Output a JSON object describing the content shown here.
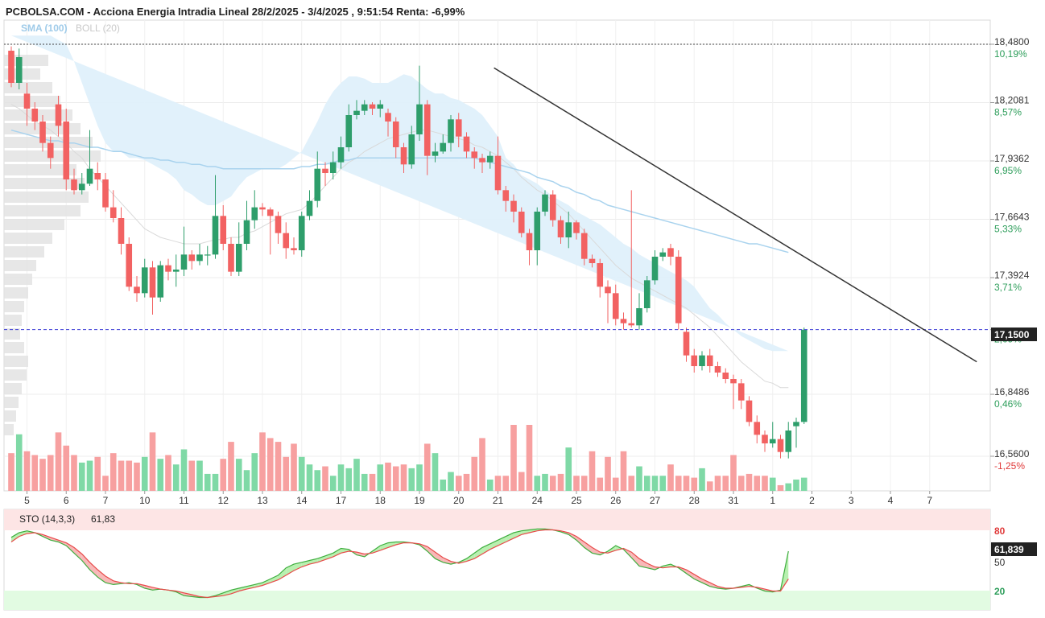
{
  "header": {
    "title": "PCBOLSA.COM - Acciona Energia Intradia Lineal 28/2/2025 - 3/4/2025 , 9:51:54 Renta: -6,99%"
  },
  "legend": {
    "sma": "SMA (100)",
    "boll": "BOLL (20)"
  },
  "colors": {
    "up": "#2e9e6b",
    "down": "#f26262",
    "up_volume": "#7fd9a6",
    "down_volume": "#f7a0a0",
    "band_fill": "#dff0fb",
    "sma": "#a9d3ee",
    "last_price_line": "#3b3bd6",
    "badge_bg": "#222222",
    "trendline": "#333333"
  },
  "price_axis": {
    "ticks": [
      {
        "value": "18,4800",
        "pct": "10,19%",
        "pct_sign": "pos"
      },
      {
        "value": "18,2081",
        "pct": "8,57%",
        "pct_sign": "pos"
      },
      {
        "value": "17,9362",
        "pct": "6,95%",
        "pct_sign": "pos"
      },
      {
        "value": "17,6643",
        "pct": "5,33%",
        "pct_sign": "pos"
      },
      {
        "value": "17,3924",
        "pct": "3,71%",
        "pct_sign": "pos"
      },
      {
        "value": "17,1500",
        "pct": "2,09%",
        "pct_sign": "pos",
        "highlight": true
      },
      {
        "value": "16,8486",
        "pct": "0,46%",
        "pct_sign": "pos"
      },
      {
        "value": "16,5600",
        "pct": "-1,25%",
        "pct_sign": "neg"
      }
    ],
    "last_price_label": "17,1500"
  },
  "x_axis": {
    "labels": [
      "5",
      "6",
      "7",
      "10",
      "11",
      "12",
      "13",
      "14",
      "17",
      "18",
      "19",
      "20",
      "21",
      "24",
      "25",
      "26",
      "27",
      "28",
      "31",
      "1",
      "2",
      "3",
      "4",
      "7"
    ]
  },
  "stochastic": {
    "label": "STO (14,3,3)",
    "value_label": "61,83",
    "badge": "61,839",
    "levels": [
      "80",
      "50",
      "20"
    ]
  },
  "chart_data": {
    "type": "candlestick",
    "title": "PCBOLSA.COM - Acciona Energia Intradia Lineal 28/2/2025 - 3/4/2025 , 9:51:54 Renta: -6,99%",
    "last_price": 17.15,
    "ylim": [
      16.5,
      18.55
    ],
    "candles": [
      [
        18.45,
        18.3,
        18.47,
        18.28
      ],
      [
        18.3,
        18.42,
        18.46,
        18.27
      ],
      [
        18.25,
        18.18,
        18.3,
        18.1
      ],
      [
        18.18,
        18.12,
        18.21,
        18.08
      ],
      [
        18.12,
        18.02,
        18.15,
        17.98
      ],
      [
        18.02,
        17.95,
        18.05,
        17.9
      ],
      [
        18.2,
        18.1,
        18.24,
        18.05
      ],
      [
        18.12,
        17.85,
        18.18,
        17.8
      ],
      [
        17.85,
        17.8,
        17.9,
        17.78
      ],
      [
        17.8,
        17.83,
        17.88,
        17.78
      ],
      [
        17.83,
        17.9,
        18.08,
        17.82
      ],
      [
        17.88,
        17.85,
        17.93,
        17.8
      ],
      [
        17.85,
        17.72,
        17.88,
        17.7
      ],
      [
        17.72,
        17.67,
        17.8,
        17.65
      ],
      [
        17.67,
        17.55,
        17.72,
        17.5
      ],
      [
        17.55,
        17.35,
        17.58,
        17.33
      ],
      [
        17.35,
        17.32,
        17.4,
        17.28
      ],
      [
        17.32,
        17.44,
        17.48,
        17.3
      ],
      [
        17.44,
        17.3,
        17.47,
        17.22
      ],
      [
        17.3,
        17.45,
        17.47,
        17.28
      ],
      [
        17.45,
        17.42,
        17.48,
        17.38
      ],
      [
        17.42,
        17.43,
        17.5,
        17.35
      ],
      [
        17.43,
        17.5,
        17.63,
        17.4
      ],
      [
        17.5,
        17.47,
        17.52,
        17.43
      ],
      [
        17.47,
        17.5,
        17.55,
        17.45
      ],
      [
        17.5,
        17.5,
        17.54,
        17.45
      ],
      [
        17.5,
        17.68,
        17.87,
        17.48
      ],
      [
        17.68,
        17.55,
        17.73,
        17.52
      ],
      [
        17.55,
        17.42,
        17.58,
        17.4
      ],
      [
        17.42,
        17.55,
        17.65,
        17.4
      ],
      [
        17.55,
        17.66,
        17.75,
        17.52
      ],
      [
        17.66,
        17.72,
        17.8,
        17.62
      ],
      [
        17.72,
        17.71,
        17.74,
        17.68
      ],
      [
        17.71,
        17.68,
        17.72,
        17.5
      ],
      [
        17.68,
        17.6,
        17.7,
        17.55
      ],
      [
        17.6,
        17.53,
        17.65,
        17.48
      ],
      [
        17.53,
        17.52,
        17.58,
        17.5
      ],
      [
        17.52,
        17.68,
        17.7,
        17.49
      ],
      [
        17.68,
        17.75,
        17.8,
        17.66
      ],
      [
        17.75,
        17.9,
        17.98,
        17.72
      ],
      [
        17.9,
        17.88,
        17.93,
        17.82
      ],
      [
        17.88,
        17.93,
        17.98,
        17.85
      ],
      [
        17.93,
        18.0,
        18.05,
        17.9
      ],
      [
        18.0,
        18.15,
        18.2,
        17.98
      ],
      [
        18.15,
        18.17,
        18.22,
        18.13
      ],
      [
        18.17,
        18.2,
        18.22,
        18.15
      ],
      [
        18.2,
        18.18,
        18.21,
        18.15
      ],
      [
        18.18,
        18.2,
        18.22,
        18.14
      ],
      [
        18.16,
        18.12,
        18.18,
        18.05
      ],
      [
        18.12,
        18.0,
        18.14,
        17.95
      ],
      [
        18.0,
        17.92,
        18.02,
        17.88
      ],
      [
        17.92,
        18.06,
        18.1,
        17.9
      ],
      [
        18.06,
        18.2,
        18.38,
        18.03
      ],
      [
        18.2,
        17.96,
        18.22,
        17.87
      ],
      [
        17.96,
        17.98,
        18.02,
        17.93
      ],
      [
        17.98,
        18.02,
        18.06,
        17.97
      ],
      [
        18.02,
        18.13,
        18.15,
        17.98
      ],
      [
        18.13,
        18.05,
        18.16,
        18.0
      ],
      [
        18.05,
        17.98,
        18.07,
        17.95
      ],
      [
        17.98,
        17.95,
        18.0,
        17.9
      ],
      [
        17.95,
        17.93,
        17.97,
        17.88
      ],
      [
        17.93,
        17.96,
        17.98,
        17.9
      ],
      [
        17.96,
        17.8,
        18.05,
        17.78
      ],
      [
        17.8,
        17.75,
        17.82,
        17.7
      ],
      [
        17.75,
        17.7,
        17.78,
        17.65
      ],
      [
        17.7,
        17.6,
        17.72,
        17.58
      ],
      [
        17.6,
        17.52,
        17.62,
        17.45
      ],
      [
        17.52,
        17.7,
        17.72,
        17.45
      ],
      [
        17.7,
        17.78,
        17.8,
        17.68
      ],
      [
        17.78,
        17.66,
        17.8,
        17.63
      ],
      [
        17.66,
        17.58,
        17.68,
        17.55
      ],
      [
        17.58,
        17.65,
        17.7,
        17.53
      ],
      [
        17.65,
        17.6,
        17.66,
        17.57
      ],
      [
        17.6,
        17.48,
        17.62,
        17.45
      ],
      [
        17.48,
        17.46,
        17.5,
        17.44
      ],
      [
        17.46,
        17.35,
        17.48,
        17.3
      ],
      [
        17.35,
        17.32,
        17.38,
        17.18
      ],
      [
        17.32,
        17.2,
        17.36,
        17.17
      ],
      [
        17.2,
        17.18,
        17.23,
        17.15
      ],
      [
        17.18,
        17.17,
        17.8,
        17.16
      ],
      [
        17.17,
        17.25,
        17.32,
        17.15
      ],
      [
        17.25,
        17.38,
        17.4,
        17.23
      ],
      [
        17.38,
        17.49,
        17.52,
        17.36
      ],
      [
        17.49,
        17.51,
        17.53,
        17.47
      ],
      [
        17.53,
        17.49,
        17.55,
        17.45
      ],
      [
        17.49,
        17.18,
        17.52,
        17.15
      ],
      [
        17.14,
        17.03,
        17.16,
        17.0
      ],
      [
        17.03,
        16.98,
        17.06,
        16.95
      ],
      [
        16.98,
        17.03,
        17.05,
        16.96
      ],
      [
        17.03,
        16.98,
        17.06,
        16.95
      ],
      [
        16.98,
        16.95,
        17.0,
        16.93
      ],
      [
        16.95,
        16.92,
        16.97,
        16.9
      ],
      [
        16.92,
        16.9,
        16.94,
        16.78
      ],
      [
        16.9,
        16.82,
        16.92,
        16.78
      ],
      [
        16.82,
        16.72,
        16.84,
        16.7
      ],
      [
        16.72,
        16.66,
        16.75,
        16.62
      ],
      [
        16.66,
        16.62,
        16.68,
        16.58
      ],
      [
        16.62,
        16.64,
        16.72,
        16.6
      ],
      [
        16.64,
        16.58,
        16.66,
        16.55
      ],
      [
        16.58,
        16.68,
        16.72,
        16.55
      ],
      [
        16.7,
        16.72,
        16.74,
        16.6
      ],
      [
        16.72,
        17.15,
        17.16,
        16.71
      ]
    ],
    "volume": [
      20,
      30,
      21,
      19,
      17,
      19,
      31,
      24,
      19,
      15,
      16,
      18,
      8,
      20,
      16,
      16,
      15,
      18,
      31,
      17,
      19,
      14,
      22,
      16,
      16,
      9,
      9,
      17,
      26,
      17,
      11,
      20,
      31,
      28,
      26,
      18,
      25,
      18,
      14,
      11,
      13,
      8,
      14,
      12,
      17,
      9,
      9,
      14,
      15,
      13,
      14,
      12,
      14,
      25,
      20,
      6,
      10,
      8,
      9,
      18,
      28,
      6,
      8,
      8,
      35,
      10,
      35,
      8,
      9,
      8,
      9,
      23,
      8,
      8,
      21,
      7,
      18,
      7,
      21,
      8,
      13,
      8,
      8,
      8,
      14,
      8,
      8,
      7,
      12,
      5,
      8,
      8,
      19,
      8,
      9,
      8,
      8,
      7,
      3,
      4,
      6,
      7
    ],
    "bollinger": {
      "upper": [
        18.52,
        18.52,
        18.52,
        18.52,
        18.52,
        18.52,
        18.5,
        18.48,
        18.4,
        18.3,
        18.2,
        18.1,
        18.02,
        17.98,
        17.98,
        17.95,
        17.95,
        17.94,
        17.92,
        17.9,
        17.88,
        17.85,
        17.8,
        17.78,
        17.75,
        17.73,
        17.73,
        17.75,
        17.77,
        17.82,
        17.86,
        17.88,
        17.9,
        17.9,
        17.9,
        17.92,
        17.95,
        17.98,
        18.05,
        18.12,
        18.2,
        18.26,
        18.3,
        18.33,
        18.33,
        18.32,
        18.3,
        18.3,
        18.3,
        18.32,
        18.34,
        18.33,
        18.3,
        18.27,
        18.25,
        18.25,
        18.23,
        18.22,
        18.2,
        18.18,
        18.15,
        18.1,
        18.05,
        17.95,
        17.92,
        17.87,
        17.85,
        17.83,
        17.8,
        17.77,
        17.75,
        17.73,
        17.7,
        17.68,
        17.66,
        17.64,
        17.61,
        17.58,
        17.55,
        17.53,
        17.5,
        17.48,
        17.46,
        17.44,
        17.42,
        17.4,
        17.38,
        17.35,
        17.3,
        17.25,
        17.22,
        17.18,
        17.15,
        17.12,
        17.1,
        17.08,
        17.06,
        17.05,
        17.05,
        17.05
      ],
      "middle": [
        18.2,
        18.18,
        18.15,
        18.12,
        18.1,
        18.08,
        18.05,
        18.02,
        17.98,
        17.95,
        17.9,
        17.86,
        17.82,
        17.78,
        17.74,
        17.7,
        17.66,
        17.62,
        17.6,
        17.58,
        17.57,
        17.56,
        17.55,
        17.55,
        17.55,
        17.56,
        17.57,
        17.57,
        17.58,
        17.58,
        17.6,
        17.61,
        17.63,
        17.65,
        17.67,
        17.69,
        17.7,
        17.71,
        17.74,
        17.78,
        17.82,
        17.86,
        17.9,
        17.93,
        17.95,
        17.98,
        18.0,
        18.02,
        18.04,
        18.05,
        18.06,
        18.07,
        18.08,
        18.08,
        18.07,
        18.06,
        18.05,
        18.04,
        18.03,
        18.01,
        18.0,
        17.98,
        17.96,
        17.93,
        17.9,
        17.86,
        17.83,
        17.8,
        17.78,
        17.75,
        17.72,
        17.69,
        17.65,
        17.61,
        17.57,
        17.53,
        17.49,
        17.45,
        17.42,
        17.39,
        17.37,
        17.35,
        17.33,
        17.31,
        17.29,
        17.27,
        17.25,
        17.22,
        17.19,
        17.16,
        17.12,
        17.08,
        17.04,
        17.0,
        16.97,
        16.94,
        16.91,
        16.9,
        16.88,
        16.88
      ],
      "lower": [
        17.95,
        17.92,
        17.9,
        17.88,
        17.85,
        17.82,
        17.78,
        17.72,
        17.66,
        17.58,
        17.5,
        17.44,
        17.38,
        17.34,
        17.3,
        17.28,
        17.26,
        17.25,
        17.25,
        17.25,
        17.27,
        17.28,
        17.28,
        17.3,
        17.33,
        17.36,
        17.38,
        17.4,
        17.43,
        17.47,
        17.5,
        17.52,
        17.52,
        17.53,
        17.55,
        17.56,
        17.58,
        17.6,
        17.63,
        17.66,
        17.72,
        17.78,
        17.82,
        17.86,
        17.88,
        17.89,
        17.9,
        17.92,
        17.94,
        17.96,
        17.98,
        17.97,
        17.95,
        17.92,
        17.9,
        17.88,
        17.85,
        17.8,
        17.78,
        17.7,
        17.6,
        17.5,
        17.4,
        17.33,
        17.3,
        17.3,
        17.28,
        17.25,
        17.22,
        17.19,
        17.15,
        17.12,
        17.08,
        17.05,
        17.02,
        17.0,
        16.98,
        16.95,
        16.93,
        16.9,
        16.88,
        16.86,
        16.84,
        16.82,
        16.8,
        16.78,
        16.75,
        16.72,
        16.68,
        16.63,
        16.6,
        16.57,
        16.55,
        16.52,
        16.5,
        16.48,
        16.47,
        16.47,
        16.47,
        16.47
      ]
    },
    "sma": [
      18.08,
      18.07,
      18.06,
      18.05,
      18.04,
      18.03,
      18.03,
      18.02,
      18.02,
      18.01,
      18.0,
      18.0,
      17.99,
      17.98,
      17.98,
      17.97,
      17.96,
      17.95,
      17.95,
      17.94,
      17.94,
      17.93,
      17.93,
      17.92,
      17.92,
      17.91,
      17.91,
      17.9,
      17.9,
      17.9,
      17.9,
      17.9,
      17.9,
      17.9,
      17.9,
      17.9,
      17.9,
      17.91,
      17.91,
      17.92,
      17.92,
      17.93,
      17.94,
      17.94,
      17.95,
      17.95,
      17.95,
      17.95,
      17.95,
      17.95,
      17.95,
      17.95,
      17.95,
      17.95,
      17.95,
      17.95,
      17.95,
      17.95,
      17.95,
      17.95,
      17.94,
      17.93,
      17.92,
      17.91,
      17.9,
      17.89,
      17.88,
      17.86,
      17.85,
      17.84,
      17.82,
      17.81,
      17.79,
      17.78,
      17.76,
      17.75,
      17.73,
      17.72,
      17.71,
      17.7,
      17.69,
      17.68,
      17.67,
      17.66,
      17.65,
      17.64,
      17.63,
      17.62,
      17.61,
      17.6,
      17.59,
      17.58,
      17.57,
      17.56,
      17.55,
      17.55,
      17.54,
      17.53,
      17.52,
      17.51
    ],
    "trendline": [
      [
        52,
        18.37
      ],
      [
        118,
        17.0
      ]
    ],
    "stochastic": {
      "k": [
        75,
        80,
        82,
        80,
        76,
        72,
        70,
        66,
        58,
        50,
        40,
        32,
        26,
        24,
        25,
        26,
        24,
        20,
        18,
        19,
        18,
        16,
        12,
        11,
        10,
        10,
        12,
        15,
        18,
        20,
        22,
        24,
        26,
        30,
        34,
        42,
        46,
        48,
        50,
        52,
        55,
        58,
        63,
        62,
        56,
        54,
        60,
        66,
        69,
        70,
        70,
        69,
        67,
        60,
        52,
        48,
        46,
        48,
        52,
        58,
        64,
        68,
        72,
        76,
        80,
        82,
        83,
        84,
        84,
        83,
        81,
        78,
        72,
        64,
        58,
        56,
        60,
        66,
        62,
        53,
        44,
        42,
        40,
        44,
        46,
        42,
        36,
        30,
        26,
        22,
        20,
        19,
        20,
        22,
        24,
        20,
        17,
        16,
        18,
        60
      ],
      "d": [
        70,
        76,
        79,
        80,
        78,
        75,
        72,
        69,
        64,
        57,
        48,
        40,
        33,
        28,
        26,
        25,
        25,
        23,
        21,
        19,
        18,
        17,
        15,
        13,
        11,
        10,
        11,
        12,
        14,
        17,
        19,
        21,
        23,
        26,
        29,
        34,
        39,
        43,
        46,
        48,
        51,
        54,
        58,
        60,
        59,
        57,
        58,
        61,
        64,
        67,
        69,
        69,
        68,
        65,
        59,
        53,
        49,
        47,
        49,
        52,
        57,
        62,
        66,
        70,
        74,
        78,
        80,
        82,
        83,
        83,
        82,
        80,
        76,
        70,
        64,
        59,
        58,
        61,
        63,
        59,
        52,
        47,
        43,
        42,
        43,
        43,
        40,
        35,
        30,
        26,
        22,
        20,
        20,
        21,
        22,
        21,
        19,
        17,
        17,
        30
      ]
    }
  }
}
